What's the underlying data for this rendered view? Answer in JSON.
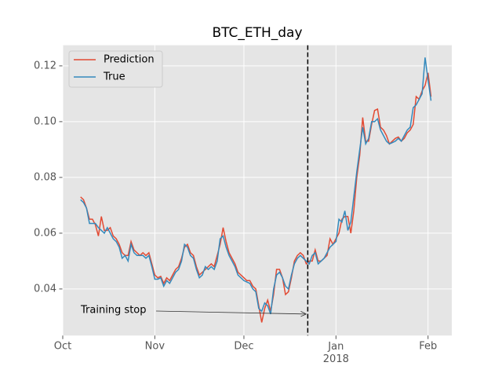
{
  "chart_data": {
    "type": "line",
    "title": "BTC_ETH_day",
    "x": [
      6,
      7,
      8,
      9,
      10,
      11,
      12,
      13,
      14,
      15,
      16,
      17,
      18,
      19,
      20,
      21,
      22,
      23,
      24,
      25,
      26,
      27,
      28,
      29,
      30,
      31,
      32,
      33,
      34,
      35,
      36,
      37,
      38,
      39,
      40,
      41,
      42,
      43,
      44,
      45,
      46,
      47,
      48,
      49,
      50,
      51,
      52,
      53,
      54,
      55,
      56,
      57,
      58,
      59,
      60,
      61,
      62,
      63,
      64,
      65,
      66,
      67,
      68,
      69,
      70,
      71,
      72,
      73,
      74,
      75,
      76,
      77,
      78,
      79,
      80,
      81,
      82,
      83,
      84,
      85,
      86,
      87,
      88,
      89,
      90,
      91,
      92,
      93,
      94,
      95,
      96,
      97,
      98,
      99,
      100,
      101,
      102,
      103,
      104,
      105,
      106,
      107,
      108,
      109,
      110,
      111,
      112,
      113,
      114,
      115,
      116,
      117,
      118,
      119,
      120,
      121,
      122,
      123,
      124
    ],
    "series": [
      {
        "name": "Prediction",
        "color": "#E24A33",
        "values": [
          0.073,
          0.072,
          0.069,
          0.065,
          0.065,
          0.063,
          0.059,
          0.066,
          0.061,
          0.061,
          0.062,
          0.059,
          0.058,
          0.056,
          0.053,
          0.052,
          0.052,
          0.057,
          0.054,
          0.053,
          0.052,
          0.053,
          0.052,
          0.053,
          0.049,
          0.045,
          0.044,
          0.0445,
          0.042,
          0.044,
          0.043,
          0.045,
          0.047,
          0.048,
          0.051,
          0.055,
          0.056,
          0.053,
          0.052,
          0.048,
          0.045,
          0.046,
          0.047,
          0.048,
          0.049,
          0.048,
          0.052,
          0.056,
          0.062,
          0.057,
          0.053,
          0.051,
          0.049,
          0.046,
          0.045,
          0.044,
          0.043,
          0.043,
          0.041,
          0.04,
          0.034,
          0.028,
          0.033,
          0.036,
          0.032,
          0.038,
          0.047,
          0.047,
          0.044,
          0.038,
          0.039,
          0.044,
          0.05,
          0.052,
          0.053,
          0.052,
          0.049,
          0.05,
          0.05,
          0.054,
          0.05,
          0.05,
          0.051,
          0.052,
          0.058,
          0.056,
          0.058,
          0.06,
          0.065,
          0.066,
          0.066,
          0.06,
          0.068,
          0.08,
          0.088,
          0.1015,
          0.093,
          0.093,
          0.099,
          0.104,
          0.1045,
          0.098,
          0.097,
          0.095,
          0.092,
          0.093,
          0.094,
          0.0945,
          0.093,
          0.094,
          0.096,
          0.097,
          0.099,
          0.109,
          0.108,
          0.111,
          0.113,
          0.1175,
          0.109
        ]
      },
      {
        "name": "True",
        "color": "#348ABD",
        "values": [
          0.072,
          0.071,
          0.069,
          0.0635,
          0.0635,
          0.0635,
          0.062,
          0.061,
          0.06,
          0.062,
          0.06,
          0.058,
          0.057,
          0.055,
          0.051,
          0.052,
          0.05,
          0.056,
          0.053,
          0.052,
          0.052,
          0.052,
          0.051,
          0.052,
          0.048,
          0.0435,
          0.0435,
          0.044,
          0.041,
          0.043,
          0.042,
          0.044,
          0.046,
          0.047,
          0.05,
          0.056,
          0.055,
          0.052,
          0.051,
          0.047,
          0.044,
          0.045,
          0.048,
          0.047,
          0.048,
          0.047,
          0.05,
          0.058,
          0.059,
          0.055,
          0.052,
          0.05,
          0.048,
          0.045,
          0.044,
          0.043,
          0.0425,
          0.042,
          0.04,
          0.039,
          0.033,
          0.032,
          0.035,
          0.034,
          0.031,
          0.04,
          0.045,
          0.046,
          0.044,
          0.041,
          0.04,
          0.045,
          0.049,
          0.051,
          0.052,
          0.051,
          0.05,
          0.049,
          0.052,
          0.053,
          0.049,
          0.05,
          0.051,
          0.053,
          0.055,
          0.056,
          0.057,
          0.065,
          0.064,
          0.068,
          0.061,
          0.064,
          0.073,
          0.082,
          0.09,
          0.098,
          0.092,
          0.094,
          0.1,
          0.1,
          0.101,
          0.097,
          0.095,
          0.093,
          0.092,
          0.0925,
          0.093,
          0.094,
          0.093,
          0.095,
          0.097,
          0.098,
          0.105,
          0.106,
          0.108,
          0.11,
          0.123,
          0.115,
          0.1075
        ]
      }
    ],
    "xlim": [
      0,
      131
    ],
    "xticks": [
      {
        "value": 0,
        "label": "Oct"
      },
      {
        "value": 31,
        "label": "Nov"
      },
      {
        "value": 61,
        "label": "Dec"
      },
      {
        "value": 92,
        "label": "Jan\n2018"
      },
      {
        "value": 123,
        "label": "Feb"
      }
    ],
    "ylim": [
      0.0233,
      0.1274
    ],
    "yticks": [
      0.04,
      0.06,
      0.08,
      0.1,
      0.12
    ],
    "ytick_labels": [
      "0.04",
      "0.06",
      "0.08",
      "0.10",
      "0.12"
    ],
    "grid": true,
    "legend": "upper left",
    "vline": 82.5,
    "annotation": {
      "text": "Training stop",
      "x": 82,
      "y": 0.031
    }
  }
}
